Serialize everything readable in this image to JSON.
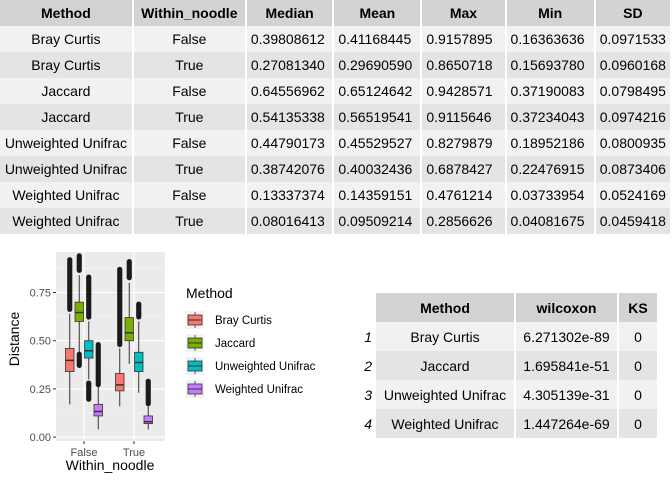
{
  "summary_table": {
    "headers": [
      "Method",
      "Within_noodle",
      "Median",
      "Mean",
      "Max",
      "Min",
      "SD"
    ],
    "rows": [
      [
        "Bray Curtis",
        "False",
        "0.39808612",
        "0.41168445",
        "0.9157895",
        "0.16363636",
        "0.0971533"
      ],
      [
        "Bray Curtis",
        "True",
        "0.27081340",
        "0.29690590",
        "0.8650718",
        "0.15693780",
        "0.0960168"
      ],
      [
        "Jaccard",
        "False",
        "0.64556962",
        "0.65124642",
        "0.9428571",
        "0.37190083",
        "0.0798495"
      ],
      [
        "Jaccard",
        "True",
        "0.54135338",
        "0.56519541",
        "0.9115646",
        "0.37234043",
        "0.0974216"
      ],
      [
        "Unweighted Unifrac",
        "False",
        "0.44790173",
        "0.45529527",
        "0.8279879",
        "0.18952186",
        "0.0800935"
      ],
      [
        "Unweighted Unifrac",
        "True",
        "0.38742076",
        "0.40032436",
        "0.6878427",
        "0.22476915",
        "0.0873406"
      ],
      [
        "Weighted Unifrac",
        "False",
        "0.13337374",
        "0.14359151",
        "0.4761214",
        "0.03733954",
        "0.0524169"
      ],
      [
        "Weighted Unifrac",
        "True",
        "0.08016413",
        "0.09509214",
        "0.2856626",
        "0.04081675",
        "0.0459418"
      ]
    ]
  },
  "stats_table": {
    "headers": [
      "",
      "Method",
      "wilcoxon",
      "KS"
    ],
    "rows": [
      [
        "1",
        "Bray Curtis",
        "6.271302e-89",
        "0"
      ],
      [
        "2",
        "Jaccard",
        "1.695841e-51",
        "0"
      ],
      [
        "3",
        "Unweighted Unifrac",
        "4.305139e-31",
        "0"
      ],
      [
        "4",
        "Weighted Unifrac",
        "1.447264e-69",
        "0"
      ]
    ]
  },
  "chart_data": {
    "type": "boxplot",
    "xlabel": "Within_noodle",
    "ylabel": "Distance",
    "categories": [
      "False",
      "True"
    ],
    "ylim": [
      -0.02,
      0.96
    ],
    "yticks": [
      "0.00",
      "0.25",
      "0.50",
      "0.75"
    ],
    "grid": true,
    "legend": {
      "title": "Method",
      "position": "right"
    },
    "series": [
      {
        "name": "Bray Curtis",
        "color": "#F8766D",
        "boxes": [
          {
            "q1": 0.34,
            "median": 0.398,
            "q3": 0.46,
            "wlo": 0.17,
            "whi": 0.64,
            "outhi": [
              0.66,
              0.92
            ],
            "outlo": []
          },
          {
            "q1": 0.24,
            "median": 0.271,
            "q3": 0.33,
            "wlo": 0.16,
            "whi": 0.46,
            "outhi": [
              0.48,
              0.87
            ],
            "outlo": []
          }
        ]
      },
      {
        "name": "Jaccard",
        "color": "#7CAE00",
        "boxes": [
          {
            "q1": 0.6,
            "median": 0.646,
            "q3": 0.7,
            "wlo": 0.44,
            "whi": 0.84,
            "outhi": [
              0.86,
              0.94
            ],
            "outlo": [
              0.37,
              0.43
            ]
          },
          {
            "q1": 0.5,
            "median": 0.541,
            "q3": 0.62,
            "wlo": 0.38,
            "whi": 0.8,
            "outhi": [
              0.82,
              0.91
            ],
            "outlo": []
          }
        ]
      },
      {
        "name": "Unweighted Unifrac",
        "color": "#00BFC4",
        "boxes": [
          {
            "q1": 0.41,
            "median": 0.448,
            "q3": 0.5,
            "wlo": 0.3,
            "whi": 0.6,
            "outhi": [
              0.62,
              0.83
            ],
            "outlo": [
              0.19,
              0.28
            ]
          },
          {
            "q1": 0.34,
            "median": 0.387,
            "q3": 0.44,
            "wlo": 0.23,
            "whi": 0.6,
            "outhi": [
              0.62,
              0.69
            ],
            "outlo": []
          }
        ]
      },
      {
        "name": "Weighted Unifrac",
        "color": "#C77CFF",
        "boxes": [
          {
            "q1": 0.11,
            "median": 0.133,
            "q3": 0.17,
            "wlo": 0.04,
            "whi": 0.26,
            "outhi": [
              0.27,
              0.48
            ],
            "outlo": []
          },
          {
            "q1": 0.07,
            "median": 0.08,
            "q3": 0.11,
            "wlo": 0.04,
            "whi": 0.16,
            "outhi": [
              0.17,
              0.29
            ],
            "outlo": []
          }
        ]
      }
    ]
  }
}
